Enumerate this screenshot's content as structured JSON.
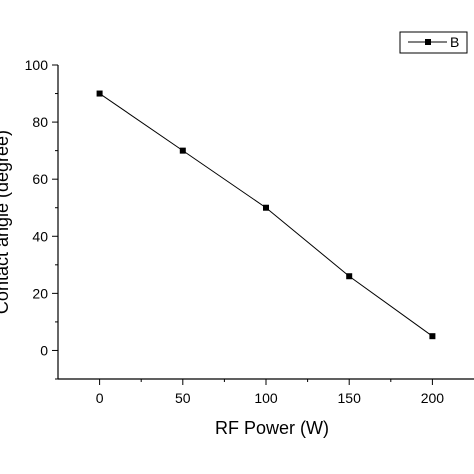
{
  "chart_data": {
    "type": "line",
    "x": [
      0,
      50,
      100,
      150,
      200
    ],
    "series": [
      {
        "name": "B",
        "values": [
          90,
          70,
          50,
          26,
          5
        ],
        "color": "#000000",
        "marker": "square"
      }
    ],
    "xlabel": "RF Power (W)",
    "ylabel": "Contact angle (degree)",
    "xlim": [
      -25,
      225
    ],
    "ylim": [
      -10,
      100
    ],
    "xticks": [
      0,
      50,
      100,
      150,
      200
    ],
    "yticks": [
      0,
      20,
      40,
      60,
      80,
      100
    ],
    "grid": false,
    "legend": "top-right"
  }
}
